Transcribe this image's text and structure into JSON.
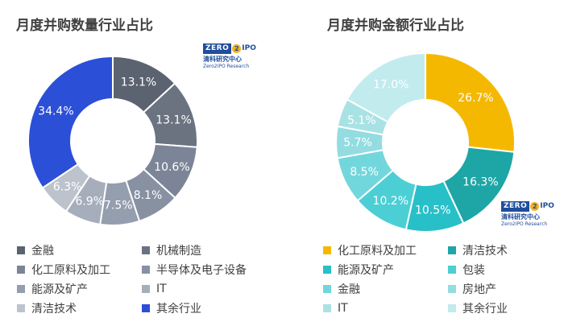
{
  "logo": {
    "zero": "ZERO",
    "two": "2",
    "ipo": "IPO",
    "cn": "清科研究中心",
    "en": "Zero2IPO Research"
  },
  "chart_data": [
    {
      "type": "pie",
      "donut": true,
      "title": "月度并购数量行业占比",
      "start_angle_deg": 0,
      "direction": "clockwise",
      "legend_position": "bottom",
      "slices": [
        {
          "label": "金融",
          "value": 13.1,
          "text": "13.1%",
          "color": "#5b6370"
        },
        {
          "label": "机械制造",
          "value": 13.1,
          "text": "13.1%",
          "color": "#6b7381"
        },
        {
          "label": "化工原料及加工",
          "value": 10.6,
          "text": "10.6%",
          "color": "#7c8597"
        },
        {
          "label": "半导体及电子设备",
          "value": 8.1,
          "text": "8.1%",
          "color": "#8891a2"
        },
        {
          "label": "能源及矿产",
          "value": 7.5,
          "text": "7.5%",
          "color": "#959eae"
        },
        {
          "label": "IT",
          "value": 6.9,
          "text": "6.9%",
          "color": "#a6aebc"
        },
        {
          "label": "清洁技术",
          "value": 6.3,
          "text": "6.3%",
          "color": "#bdc3cd"
        },
        {
          "label": "其余行业",
          "value": 34.4,
          "text": "34.4%",
          "color": "#2c4fd8"
        }
      ]
    },
    {
      "type": "pie",
      "donut": true,
      "title": "月度并购金额行业占比",
      "start_angle_deg": 0,
      "direction": "clockwise",
      "legend_position": "bottom",
      "slices": [
        {
          "label": "化工原料及加工",
          "value": 26.7,
          "text": "26.7%",
          "color": "#f5b800"
        },
        {
          "label": "清洁技术",
          "value": 16.3,
          "text": "16.3%",
          "color": "#1ea6a6"
        },
        {
          "label": "能源及矿产",
          "value": 10.5,
          "text": "10.5%",
          "color": "#28c0c8"
        },
        {
          "label": "包装",
          "value": 10.2,
          "text": "10.2%",
          "color": "#4ccfd4"
        },
        {
          "label": "金融",
          "value": 8.5,
          "text": "8.5%",
          "color": "#72d7dc"
        },
        {
          "label": "房地产",
          "value": 5.7,
          "text": "5.7%",
          "color": "#93dde1"
        },
        {
          "label": "IT",
          "value": 5.1,
          "text": "5.1%",
          "color": "#a9e2e5"
        },
        {
          "label": "其余行业",
          "value": 17.0,
          "text": "17.0%",
          "color": "#c2ebee"
        }
      ]
    }
  ]
}
